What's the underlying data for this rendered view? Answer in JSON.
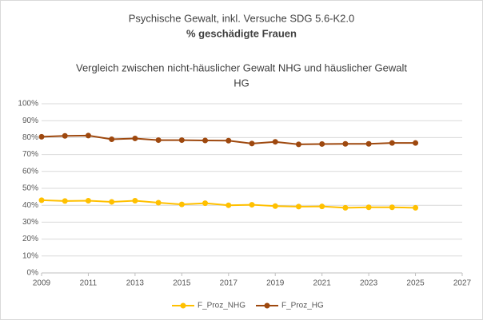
{
  "chart_data": {
    "type": "line",
    "title_lines": [
      "Psychische Gewalt, inkl. Versuche SDG 5.6-K2.0",
      "% geschädigte Frauen"
    ],
    "subtitle_lines": [
      "Vergleich zwischen nicht-häuslicher Gewalt NHG und häuslicher Gewalt",
      "HG"
    ],
    "x": [
      2009,
      2010,
      2011,
      2012,
      2013,
      2014,
      2015,
      2016,
      2017,
      2018,
      2019,
      2020,
      2021,
      2022,
      2023,
      2024,
      2025
    ],
    "series": [
      {
        "name": "F_Proz_NHG",
        "color": "#ffc000",
        "values": [
          43,
          42.5,
          42.7,
          42,
          42.7,
          41.5,
          40.5,
          41.2,
          40,
          40.3,
          39.5,
          39.2,
          39.3,
          38.5,
          38.8,
          38.8,
          38.5
        ]
      },
      {
        "name": "F_Proz_HG",
        "color": "#9e480e",
        "values": [
          80.5,
          81,
          81.2,
          79,
          79.5,
          78.5,
          78.5,
          78.3,
          78.2,
          76.5,
          77.5,
          76,
          76.2,
          76.3,
          76.3,
          76.8,
          76.8
        ]
      }
    ],
    "xlim": [
      2009,
      2027
    ],
    "xticks": [
      2009,
      2011,
      2013,
      2015,
      2017,
      2019,
      2021,
      2023,
      2025,
      2027
    ],
    "ylim": [
      0,
      100
    ],
    "yticks": [
      {
        "value": 0,
        "label": "0%"
      },
      {
        "value": 10,
        "label": "10%"
      },
      {
        "value": 20,
        "label": "20%"
      },
      {
        "value": 30,
        "label": "30%"
      },
      {
        "value": 40,
        "label": "40%"
      },
      {
        "value": 50,
        "label": "50%"
      },
      {
        "value": 60,
        "label": "60%"
      },
      {
        "value": 70,
        "label": "70%"
      },
      {
        "value": 80,
        "label": "80%"
      },
      {
        "value": 90,
        "label": "90%"
      },
      {
        "value": 100,
        "label": "100%"
      }
    ],
    "grid": true,
    "legend": "bottom"
  }
}
